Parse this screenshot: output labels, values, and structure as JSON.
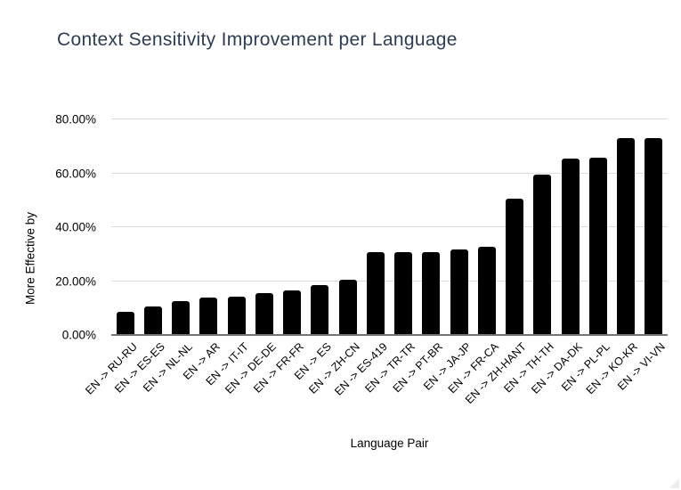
{
  "chart_data": {
    "type": "bar",
    "title": "Context Sensitivity Improvement per Language",
    "xlabel": "Language Pair",
    "ylabel": "More Effective by",
    "categories": [
      "EN -> RU-RU",
      "EN -> ES-ES",
      "EN -> NL-NL",
      "EN -> AR",
      "EN -> IT-IT",
      "EN -> DE-DE",
      "EN -> FR-FR",
      "EN -> ES",
      "EN -> ZH-CN",
      "EN -> ES-419",
      "EN -> TR-TR",
      "EN -> PT-BR",
      "EN -> JA-JP",
      "EN -> FR-CA",
      "EN -> ZH-HANT",
      "EN -> TH-TH",
      "EN -> DA-DK",
      "EN -> PL-PL",
      "EN -> KO-KR",
      "EN -> VI-VN"
    ],
    "values": [
      8.5,
      10.7,
      12.6,
      13.8,
      14.1,
      15.4,
      16.4,
      18.5,
      20.5,
      30.7,
      30.7,
      30.7,
      31.9,
      32.8,
      50.6,
      59.6,
      65.6,
      65.7,
      72.9,
      72.9
    ],
    "y_tick_labels": [
      "0.00%",
      "20.00%",
      "40.00%",
      "60.00%",
      "80.00%"
    ],
    "y_tick_values": [
      0,
      20,
      40,
      60,
      80
    ],
    "ylim": [
      0,
      80
    ],
    "grid": true,
    "legend": "none",
    "bar_color": "#000000",
    "title_color": "#2e3c55",
    "gridline_color": "#dcdcdc",
    "axis_line_color": "#757575"
  }
}
